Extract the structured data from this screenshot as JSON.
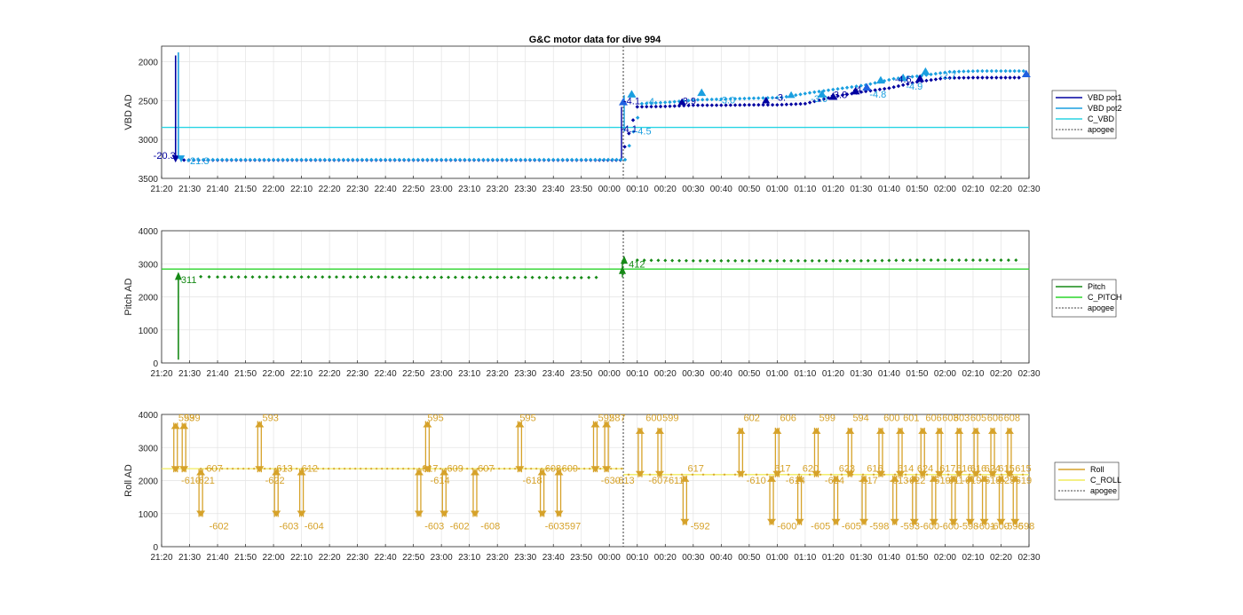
{
  "figure_title": "G&C motor data for dive 994",
  "colors": {
    "vbd_pot1": "#0000a0",
    "vbd_pot2": "#1a9fe0",
    "c_vbd": "#28d4e4",
    "vbd_head": "#2060e0",
    "pitch": "#168a16",
    "c_pitch": "#2bd52b",
    "roll": "#d6a22a",
    "c_roll": "#f0ec5c",
    "apogee": "#3c3c3c"
  },
  "chart_data": [
    {
      "type": "line",
      "title": "G&C motor data for dive 994",
      "ylabel": "VBD AD",
      "xlabel": "",
      "x_ticks": [
        "21:20",
        "21:30",
        "21:40",
        "21:50",
        "22:00",
        "22:10",
        "22:20",
        "22:30",
        "22:40",
        "22:50",
        "23:00",
        "23:10",
        "23:20",
        "23:30",
        "23:40",
        "23:50",
        "00:00",
        "00:10",
        "00:20",
        "00:30",
        "00:40",
        "00:50",
        "01:00",
        "01:10",
        "01:20",
        "01:30",
        "01:40",
        "01:50",
        "02:00",
        "02:10",
        "02:20",
        "02:30"
      ],
      "y_ticks": [
        "2000",
        "2500",
        "3000",
        "3500"
      ],
      "ylim": [
        3500,
        1800
      ],
      "y_reversed": true,
      "grid": true,
      "legend": [
        "VBD pot1",
        "VBD pot2",
        "C_VBD",
        "apogee"
      ],
      "legend_position": "outside-right",
      "apogee_x": "00:05",
      "c_vbd": 2845,
      "series": [
        {
          "name": "VBD pot1",
          "x": [
            "21:28",
            "21:35",
            "21:45",
            "21:55",
            "22:05",
            "22:15",
            "22:25",
            "22:35",
            "22:45",
            "22:55",
            "23:05",
            "23:15",
            "23:25",
            "23:35",
            "23:45",
            "23:55",
            "00:04",
            "00:10",
            "00:20",
            "00:30",
            "00:40",
            "00:50",
            "01:00",
            "01:10",
            "01:20",
            "01:30",
            "01:40",
            "01:50",
            "02:00",
            "02:10",
            "02:20",
            "02:28"
          ],
          "y": [
            3265,
            3265,
            3265,
            3265,
            3265,
            3265,
            3265,
            3265,
            3265,
            3265,
            3265,
            3265,
            3265,
            3265,
            3265,
            3265,
            3265,
            2580,
            2575,
            2560,
            2560,
            2555,
            2555,
            2540,
            2450,
            2390,
            2340,
            2260,
            2210,
            2205,
            2205,
            2205
          ]
        },
        {
          "name": "VBD pot2",
          "x": [
            "21:29",
            "21:36",
            "21:46",
            "21:56",
            "22:06",
            "22:16",
            "22:26",
            "22:36",
            "22:46",
            "22:56",
            "23:06",
            "23:16",
            "23:26",
            "23:36",
            "23:46",
            "23:56",
            "00:05",
            "00:11",
            "00:21",
            "00:31",
            "00:41",
            "00:51",
            "01:01",
            "01:11",
            "01:21",
            "01:31",
            "01:41",
            "01:51",
            "02:01",
            "02:11",
            "02:21",
            "02:29"
          ],
          "y": [
            3265,
            3260,
            3260,
            3260,
            3260,
            3260,
            3260,
            3260,
            3260,
            3260,
            3260,
            3260,
            3260,
            3260,
            3260,
            3260,
            3260,
            2540,
            2520,
            2490,
            2480,
            2470,
            2460,
            2400,
            2350,
            2300,
            2220,
            2180,
            2130,
            2120,
            2120,
            2120
          ]
        }
      ],
      "annotations": [
        {
          "text": "-20.3",
          "x": "21:25",
          "y": 3250,
          "series": "VBD pot1"
        },
        {
          "text": "-21.3",
          "x": "21:29",
          "y": 3320,
          "series": "VBD pot2"
        },
        {
          "text": "-4.1",
          "x": "00:05",
          "y": 2550,
          "series": "VBD pot1"
        },
        {
          "text": "-4.1",
          "x": "00:04",
          "y": 2905,
          "series": "VBD pot1"
        },
        {
          "text": "-4.5",
          "x": "00:09",
          "y": 2935,
          "series": "VBD pot2"
        },
        {
          "text": "-4",
          "x": "00:13",
          "y": 2555,
          "series": "VBD pot2"
        },
        {
          "text": "-3.9",
          "x": "00:25",
          "y": 2545,
          "series": "VBD pot1"
        },
        {
          "text": "-3.0",
          "x": "00:39",
          "y": 2535,
          "series": "VBD pot2"
        },
        {
          "text": "-3.",
          "x": "00:59",
          "y": 2500,
          "series": "VBD pot1"
        },
        {
          "text": "-3.0",
          "x": "01:12",
          "y": 2520,
          "series": "VBD pot2"
        },
        {
          "text": "-3.8",
          "x": "01:19",
          "y": 2465,
          "series": "VBD pot1"
        },
        {
          "text": "-4.",
          "x": "01:27",
          "y": 2400,
          "series": "VBD pot1"
        },
        {
          "text": "-4.8",
          "x": "01:33",
          "y": 2460,
          "series": "VBD pot2"
        },
        {
          "text": "-4.9",
          "x": "01:46",
          "y": 2360,
          "series": "VBD pot2"
        },
        {
          "text": "-4.6",
          "x": "01:42",
          "y": 2270,
          "series": "VBD pot1"
        },
        {
          "text": "-2.7",
          "x": "01:58",
          "y": 2220,
          "series": "VBD pot2"
        }
      ]
    },
    {
      "type": "line",
      "ylabel": "Pitch AD",
      "xlabel": "",
      "x_ticks": [
        "21:20",
        "21:30",
        "21:40",
        "21:50",
        "22:00",
        "22:10",
        "22:20",
        "22:30",
        "22:40",
        "22:50",
        "23:00",
        "23:10",
        "23:20",
        "23:30",
        "23:40",
        "23:50",
        "00:00",
        "00:10",
        "00:20",
        "00:30",
        "00:40",
        "00:50",
        "01:00",
        "01:10",
        "01:20",
        "01:30",
        "01:40",
        "01:50",
        "02:00",
        "02:10",
        "02:20",
        "02:30"
      ],
      "y_ticks": [
        "0",
        "1000",
        "2000",
        "3000",
        "4000"
      ],
      "ylim": [
        0,
        4000
      ],
      "grid": true,
      "legend": [
        "Pitch",
        "C_PITCH",
        "apogee"
      ],
      "legend_position": "outside-right",
      "apogee_x": "00:05",
      "c_pitch": 2840,
      "series": [
        {
          "name": "Pitch",
          "x": [
            "21:34",
            "21:40",
            "21:50",
            "22:00",
            "22:10",
            "22:20",
            "22:30",
            "22:40",
            "22:50",
            "23:00",
            "23:10",
            "23:20",
            "23:30",
            "23:40",
            "23:50",
            "23:58",
            "00:10",
            "00:20",
            "00:30",
            "00:40",
            "00:50",
            "01:00",
            "01:10",
            "01:20",
            "01:30",
            "01:40",
            "01:50",
            "02:00",
            "02:10",
            "02:20",
            "02:28"
          ],
          "y": [
            2610,
            2600,
            2600,
            2600,
            2600,
            2600,
            2600,
            2600,
            2590,
            2590,
            2590,
            2590,
            2590,
            2580,
            2580,
            2590,
            3110,
            3100,
            3090,
            3090,
            3090,
            3090,
            3090,
            3090,
            3090,
            3100,
            3110,
            3110,
            3110,
            3110,
            3110
          ]
        }
      ],
      "annotations": [
        {
          "text": "311",
          "x": "21:26",
          "y": 2420,
          "series": "Pitch"
        },
        {
          "text": "412",
          "x": "00:06",
          "y": 2890,
          "series": "Pitch"
        }
      ]
    },
    {
      "type": "line",
      "ylabel": "Roll AD",
      "xlabel": "",
      "x_ticks": [
        "21:20",
        "21:30",
        "21:40",
        "21:50",
        "22:00",
        "22:10",
        "22:20",
        "22:30",
        "22:40",
        "22:50",
        "23:00",
        "23:10",
        "23:20",
        "23:30",
        "23:40",
        "23:50",
        "00:00",
        "00:10",
        "00:20",
        "00:30",
        "00:40",
        "00:50",
        "01:00",
        "01:10",
        "01:20",
        "01:30",
        "01:40",
        "01:50",
        "02:00",
        "02:10",
        "02:20",
        "02:30"
      ],
      "y_ticks": [
        "0",
        "1000",
        "2000",
        "3000",
        "4000"
      ],
      "ylim": [
        0,
        4000
      ],
      "grid": true,
      "legend": [
        "Roll",
        "C_ROLL",
        "apogee"
      ],
      "legend_position": "outside-right",
      "apogee_x": "00:05",
      "c_roll": 2360,
      "c_roll_after_apogee": 2180,
      "top_labels": [
        {
          "text": "593",
          "x": "21:26"
        },
        {
          "text": "599",
          "x": "21:28"
        },
        {
          "text": "593",
          "x": "21:56"
        },
        {
          "text": "595",
          "x": "22:55"
        },
        {
          "text": "595",
          "x": "23:28"
        },
        {
          "text": "592",
          "x": "23:56"
        },
        {
          "text": "587",
          "x": "00:00"
        },
        {
          "text": "600",
          "x": "00:13"
        },
        {
          "text": "599",
          "x": "00:19"
        },
        {
          "text": "602",
          "x": "00:48"
        },
        {
          "text": "606",
          "x": "01:01"
        },
        {
          "text": "599",
          "x": "01:15"
        },
        {
          "text": "594",
          "x": "01:27"
        },
        {
          "text": "600",
          "x": "01:38"
        },
        {
          "text": "601",
          "x": "01:45"
        },
        {
          "text": "606",
          "x": "01:53"
        },
        {
          "text": "603",
          "x": "01:59"
        },
        {
          "text": "603",
          "x": "02:03"
        },
        {
          "text": "605",
          "x": "02:09"
        },
        {
          "text": "606",
          "x": "02:15"
        },
        {
          "text": "608",
          "x": "02:21"
        }
      ],
      "mid_labels": [
        {
          "text": "607",
          "x": "21:36"
        },
        {
          "text": "613",
          "x": "22:01"
        },
        {
          "text": "612",
          "x": "22:10"
        },
        {
          "text": "617",
          "x": "22:53"
        },
        {
          "text": "609",
          "x": "23:02"
        },
        {
          "text": "607",
          "x": "23:13"
        },
        {
          "text": "608",
          "x": "23:37"
        },
        {
          "text": "609",
          "x": "23:43"
        },
        {
          "text": "617",
          "x": "00:28"
        },
        {
          "text": "617",
          "x": "00:59"
        },
        {
          "text": "620",
          "x": "01:09"
        },
        {
          "text": "623",
          "x": "01:22"
        },
        {
          "text": "616",
          "x": "01:32"
        },
        {
          "text": "614",
          "x": "01:43"
        },
        {
          "text": "624",
          "x": "01:50"
        },
        {
          "text": "617",
          "x": "01:58"
        },
        {
          "text": "616",
          "x": "02:04"
        },
        {
          "text": "616",
          "x": "02:09"
        },
        {
          "text": "624",
          "x": "02:14"
        },
        {
          "text": "615",
          "x": "02:19"
        },
        {
          "text": "615",
          "x": "02:25"
        }
      ],
      "mid_low_labels": [
        {
          "text": "-610",
          "x": "21:27"
        },
        {
          "text": "-621",
          "x": "21:32"
        },
        {
          "text": "-622",
          "x": "21:57"
        },
        {
          "text": "-614",
          "x": "22:56"
        },
        {
          "text": "-618",
          "x": "23:29"
        },
        {
          "text": "-630",
          "x": "23:57"
        },
        {
          "text": "-613",
          "x": "00:02"
        },
        {
          "text": "-607",
          "x": "00:14"
        },
        {
          "text": "-611",
          "x": "00:20"
        },
        {
          "text": "-610",
          "x": "00:49"
        },
        {
          "text": "-614",
          "x": "01:03"
        },
        {
          "text": "-624",
          "x": "01:17"
        },
        {
          "text": "-617",
          "x": "01:29"
        },
        {
          "text": "-613",
          "x": "01:40"
        },
        {
          "text": "-622",
          "x": "01:46"
        },
        {
          "text": "-619",
          "x": "01:55"
        },
        {
          "text": "-611",
          "x": "02:00"
        },
        {
          "text": "-619",
          "x": "02:06"
        },
        {
          "text": "-615",
          "x": "02:13"
        },
        {
          "text": "-625",
          "x": "02:18"
        },
        {
          "text": "-619",
          "x": "02:24"
        }
      ],
      "bottom_labels": [
        {
          "text": "-602",
          "x": "21:37"
        },
        {
          "text": "-603",
          "x": "22:02"
        },
        {
          "text": "-604",
          "x": "22:11"
        },
        {
          "text": "-603",
          "x": "22:54"
        },
        {
          "text": "-602",
          "x": "23:03"
        },
        {
          "text": "-608",
          "x": "23:14"
        },
        {
          "text": "-603",
          "x": "23:37"
        },
        {
          "text": "597",
          "x": "23:44"
        },
        {
          "text": "-592",
          "x": "00:29"
        },
        {
          "text": "-600",
          "x": "01:00"
        },
        {
          "text": "-605",
          "x": "01:12"
        },
        {
          "text": "-605",
          "x": "01:23"
        },
        {
          "text": "-598",
          "x": "01:33"
        },
        {
          "text": "-593",
          "x": "01:44"
        },
        {
          "text": "-600",
          "x": "01:51"
        },
        {
          "text": "-600",
          "x": "01:58"
        },
        {
          "text": "-598",
          "x": "02:05"
        },
        {
          "text": "-601",
          "x": "02:11"
        },
        {
          "text": "-600",
          "x": "02:16"
        },
        {
          "text": "-596",
          "x": "02:21"
        },
        {
          "text": "-598",
          "x": "02:25"
        }
      ],
      "roll_arrows": [
        {
          "x": "21:25",
          "from": 3750,
          "to": 2250
        },
        {
          "x": "21:28",
          "from": 3750,
          "to": 2250
        },
        {
          "x": "21:34",
          "from": 2350,
          "to": 900
        },
        {
          "x": "21:55",
          "from": 3800,
          "to": 2250
        },
        {
          "x": "22:01",
          "from": 2350,
          "to": 900
        },
        {
          "x": "22:10",
          "from": 2350,
          "to": 900
        },
        {
          "x": "22:52",
          "from": 2350,
          "to": 900
        },
        {
          "x": "22:55",
          "from": 3800,
          "to": 2250
        },
        {
          "x": "23:01",
          "from": 2350,
          "to": 900
        },
        {
          "x": "23:12",
          "from": 2350,
          "to": 900
        },
        {
          "x": "23:28",
          "from": 3800,
          "to": 2250
        },
        {
          "x": "23:36",
          "from": 2350,
          "to": 900
        },
        {
          "x": "23:42",
          "from": 2350,
          "to": 900
        },
        {
          "x": "23:55",
          "from": 3800,
          "to": 2250
        },
        {
          "x": "23:59",
          "from": 3800,
          "to": 2250
        },
        {
          "x": "00:11",
          "from": 3600,
          "to": 2100
        },
        {
          "x": "00:18",
          "from": 3600,
          "to": 2100
        },
        {
          "x": "00:27",
          "from": 2150,
          "to": 650
        },
        {
          "x": "00:47",
          "from": 3600,
          "to": 2100
        },
        {
          "x": "00:58",
          "from": 2150,
          "to": 650
        },
        {
          "x": "01:00",
          "from": 3600,
          "to": 2100
        },
        {
          "x": "01:08",
          "from": 2150,
          "to": 650
        },
        {
          "x": "01:14",
          "from": 3600,
          "to": 2100
        },
        {
          "x": "01:21",
          "from": 2150,
          "to": 650
        },
        {
          "x": "01:26",
          "from": 3600,
          "to": 2100
        },
        {
          "x": "01:31",
          "from": 2150,
          "to": 650
        },
        {
          "x": "01:37",
          "from": 3600,
          "to": 2100
        },
        {
          "x": "01:42",
          "from": 2150,
          "to": 650
        },
        {
          "x": "01:44",
          "from": 3600,
          "to": 2100
        },
        {
          "x": "01:49",
          "from": 2150,
          "to": 650
        },
        {
          "x": "01:52",
          "from": 3600,
          "to": 2100
        },
        {
          "x": "01:56",
          "from": 2150,
          "to": 650
        },
        {
          "x": "01:58",
          "from": 3600,
          "to": 2100
        },
        {
          "x": "02:03",
          "from": 2150,
          "to": 650
        },
        {
          "x": "02:05",
          "from": 3600,
          "to": 2100
        },
        {
          "x": "02:09",
          "from": 2150,
          "to": 650
        },
        {
          "x": "02:11",
          "from": 3600,
          "to": 2100
        },
        {
          "x": "02:14",
          "from": 2150,
          "to": 650
        },
        {
          "x": "02:17",
          "from": 3600,
          "to": 2100
        },
        {
          "x": "02:20",
          "from": 2150,
          "to": 650
        },
        {
          "x": "02:23",
          "from": 3600,
          "to": 2100
        },
        {
          "x": "02:25",
          "from": 2150,
          "to": 650
        }
      ]
    }
  ]
}
